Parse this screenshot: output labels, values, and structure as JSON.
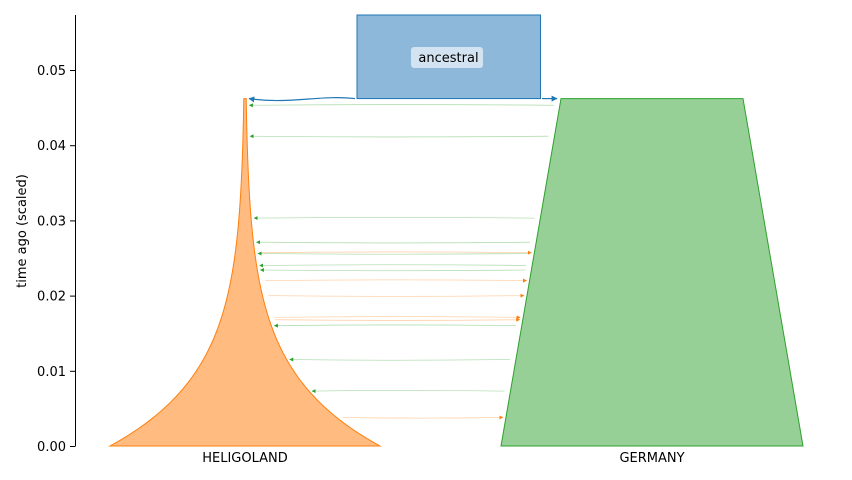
{
  "chart_data": {
    "type": "demography-diagram",
    "ylabel": "time ago (scaled)",
    "ylim": [
      0,
      0.058
    ],
    "yticks": [
      0.0,
      0.01,
      0.02,
      0.03,
      0.04,
      0.05
    ],
    "ytick_labels": [
      "0.00",
      "0.01",
      "0.02",
      "0.03",
      "0.04",
      "0.05"
    ],
    "demes": [
      {
        "name": "ancestral",
        "color": "#1f77b4",
        "fill": "#8db8da",
        "start_time": 0.058,
        "end_time": 0.0462,
        "shape": "constant"
      },
      {
        "name": "HELIGOLAND",
        "color": "#ff7f0e",
        "fill": "#ffbb80",
        "start_time": 0.0462,
        "end_time": 0.0,
        "shape": "exponential-growth"
      },
      {
        "name": "GERMANY",
        "color": "#2ca02c",
        "fill": "#96d096",
        "start_time": 0.0462,
        "end_time": 0.0,
        "shape": "linear-growth"
      }
    ],
    "pulses": [
      {
        "source": "GERMANY",
        "dest": "HELIGOLAND",
        "time": 0.0453
      },
      {
        "source": "GERMANY",
        "dest": "HELIGOLAND",
        "time": 0.0412
      },
      {
        "source": "GERMANY",
        "dest": "HELIGOLAND",
        "time": 0.0303
      },
      {
        "source": "GERMANY",
        "dest": "HELIGOLAND",
        "time": 0.0271
      },
      {
        "source": "HELIGOLAND",
        "dest": "GERMANY",
        "time": 0.0257
      },
      {
        "source": "GERMANY",
        "dest": "HELIGOLAND",
        "time": 0.0256
      },
      {
        "source": "GERMANY",
        "dest": "HELIGOLAND",
        "time": 0.024
      },
      {
        "source": "GERMANY",
        "dest": "HELIGOLAND",
        "time": 0.0234
      },
      {
        "source": "HELIGOLAND",
        "dest": "GERMANY",
        "time": 0.022
      },
      {
        "source": "HELIGOLAND",
        "dest": "GERMANY",
        "time": 0.02
      },
      {
        "source": "HELIGOLAND",
        "dest": "GERMANY",
        "time": 0.0171
      },
      {
        "source": "HELIGOLAND",
        "dest": "GERMANY",
        "time": 0.0168
      },
      {
        "source": "GERMANY",
        "dest": "HELIGOLAND",
        "time": 0.016
      },
      {
        "source": "GERMANY",
        "dest": "HELIGOLAND",
        "time": 0.0115
      },
      {
        "source": "GERMANY",
        "dest": "HELIGOLAND",
        "time": 0.0073
      },
      {
        "source": "HELIGOLAND",
        "dest": "GERMANY",
        "time": 0.0038
      }
    ]
  }
}
